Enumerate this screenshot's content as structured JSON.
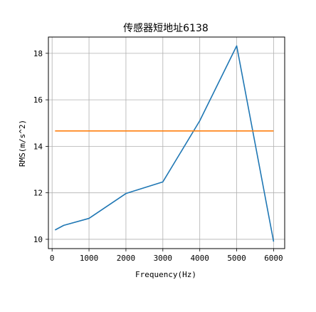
{
  "chart_data": {
    "type": "line",
    "title": "传感器短地址6138",
    "xlabel": "Frequency(Hz)",
    "ylabel": "RMS(m/s^2)",
    "xlim": [
      -100,
      6300
    ],
    "ylim": [
      9.6,
      18.7
    ],
    "xticks": [
      0,
      1000,
      2000,
      3000,
      4000,
      5000,
      6000
    ],
    "yticks": [
      10,
      12,
      14,
      16,
      18
    ],
    "grid": true,
    "series": [
      {
        "color": "#1f77b4",
        "x": [
          80,
          315,
          1000,
          2000,
          3000,
          4000,
          5000,
          6000
        ],
        "y": [
          10.4,
          10.6,
          10.9,
          11.97,
          12.47,
          15.1,
          18.32,
          9.9
        ]
      },
      {
        "color": "#ff7f0e",
        "x": [
          80,
          6000
        ],
        "y": [
          14.66,
          14.66
        ]
      }
    ]
  }
}
